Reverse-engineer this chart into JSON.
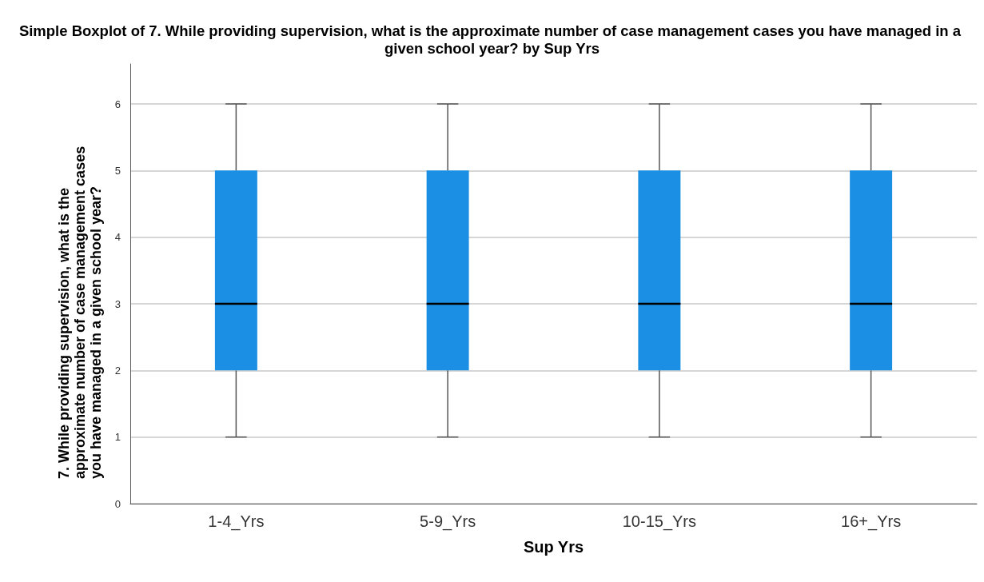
{
  "chart_data": {
    "type": "box",
    "title": "Simple Boxplot of 7. While providing supervision, what is the approximate number of case management cases you have managed in a given school year? by Sup Yrs",
    "xlabel": "Sup Yrs",
    "ylabel": "7. While providing supervision, what is the approximate number of case management cases you have managed in a given school year?",
    "categories": [
      "1-4_Yrs",
      "5-9_Yrs",
      "10-15_Yrs",
      "16+_Yrs"
    ],
    "color": "#1a8fe3",
    "boxes": [
      {
        "low": 1,
        "q1": 2,
        "median": 3,
        "q3": 5,
        "high": 6
      },
      {
        "low": 1,
        "q1": 2,
        "median": 3,
        "q3": 5,
        "high": 6
      },
      {
        "low": 1,
        "q1": 2,
        "median": 3,
        "q3": 5,
        "high": 6
      },
      {
        "low": 1,
        "q1": 2,
        "median": 3,
        "q3": 5,
        "high": 6
      }
    ],
    "ylim": [
      0,
      6.6
    ],
    "yticks": [
      0,
      1,
      2,
      3,
      4,
      5,
      6
    ],
    "grid": "y"
  }
}
